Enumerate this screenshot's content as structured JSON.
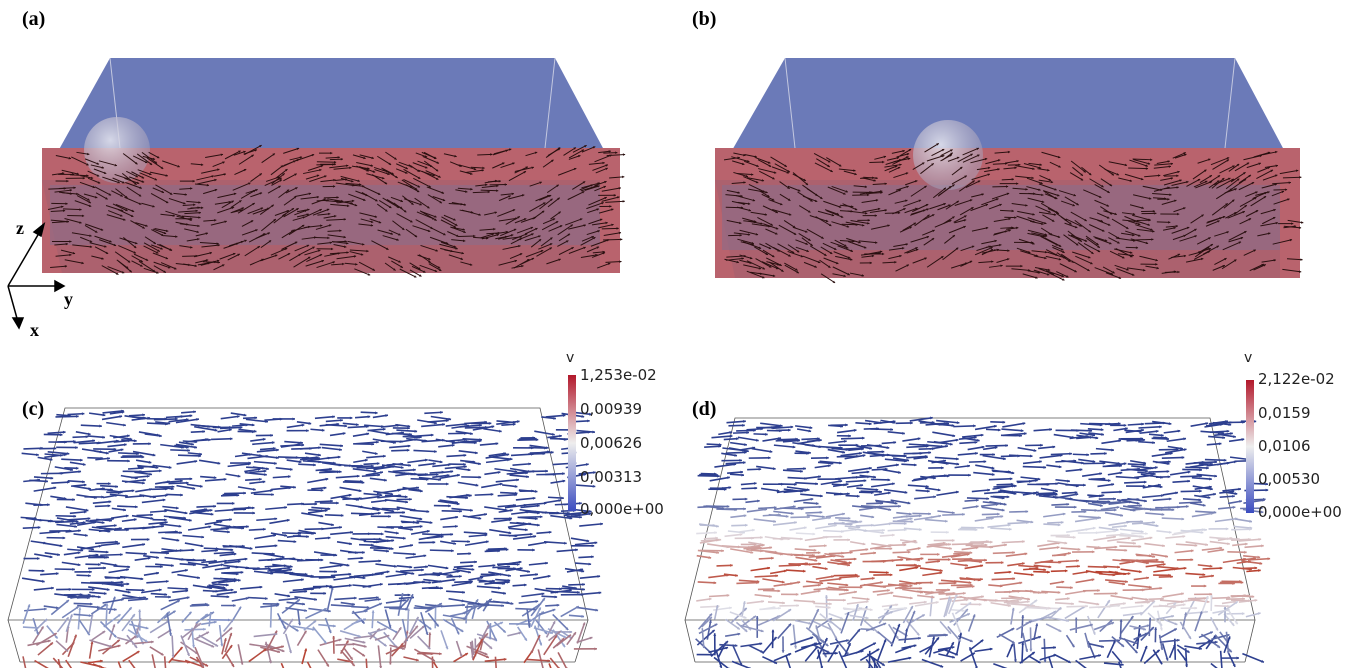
{
  "panels": {
    "a": "(a)",
    "b": "(b)",
    "c": "(c)",
    "d": "(d)"
  },
  "axes": {
    "z": "z",
    "y": "y",
    "x": "x"
  },
  "colorbar_c": {
    "title": "v",
    "ticks": [
      "1,253e-02",
      "0,00939",
      "0,00626",
      "0,00313",
      "0,000e+00"
    ],
    "colors": {
      "high": "#b2182b",
      "mid": "#eeeeee",
      "low": "#3b4cc0"
    }
  },
  "colorbar_d": {
    "title": "v",
    "ticks": [
      "2,122e-02",
      "0,0159",
      "0,0106",
      "0,00530",
      "0,000e+00"
    ],
    "colors": {
      "high": "#b2182b",
      "mid": "#eeeeee",
      "low": "#3b4cc0"
    }
  },
  "palette": {
    "top_layer": "#6676b4",
    "bottom_layer": "#b85a66",
    "arrow_dark": "#2a1010",
    "arrow_blue": "#2d3f8f",
    "arrow_red": "#b8402e"
  }
}
